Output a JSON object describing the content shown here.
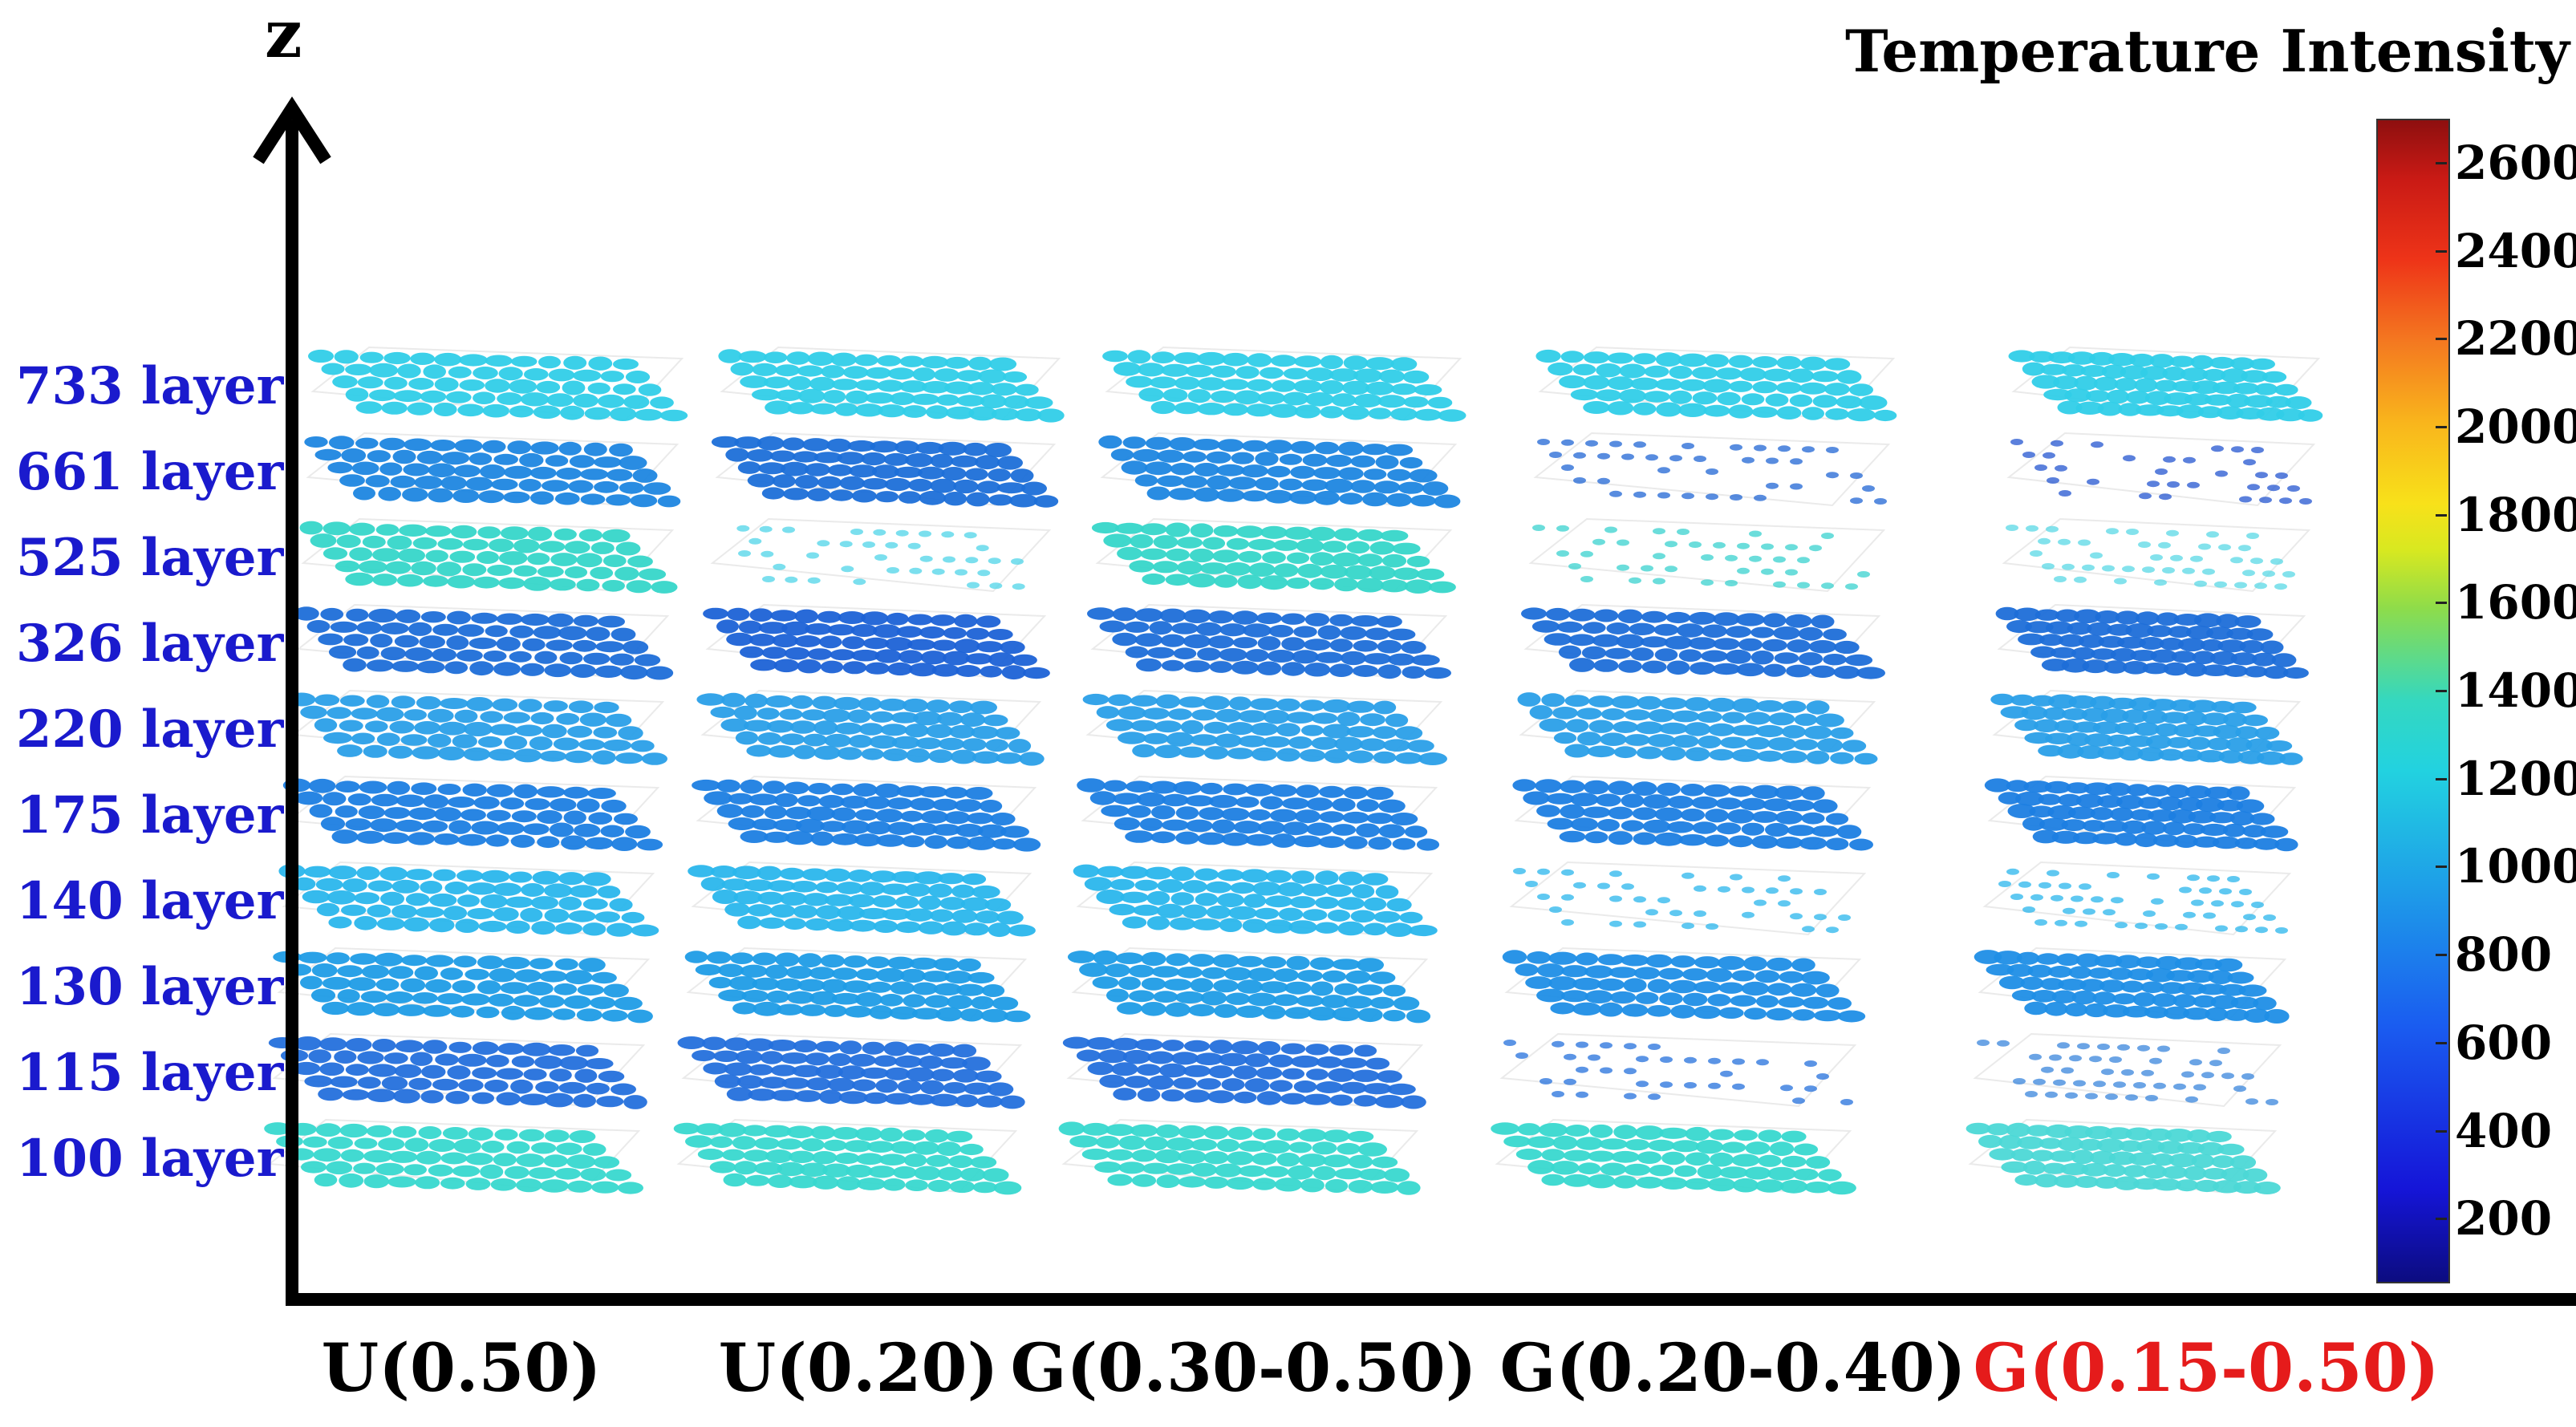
{
  "axis": {
    "z_label": "z"
  },
  "layers": [
    "733 layer",
    "661 layer",
    "525 layer",
    "326 layer",
    "220 layer",
    "175 layer",
    "140 layer",
    "130 layer",
    "115 layer",
    "100 layer"
  ],
  "columns": [
    {
      "label": "U(0.50)",
      "highlight": false
    },
    {
      "label": "U(0.20)",
      "highlight": false
    },
    {
      "label": "G(0.30-0.50)",
      "highlight": false
    },
    {
      "label": "G(0.20-0.40)",
      "highlight": false
    },
    {
      "label": "G(0.15-0.50)",
      "highlight": true
    }
  ],
  "colorbar": {
    "title": "Temperature Intensity",
    "ticks": [
      "2600",
      "2400",
      "2200",
      "2000",
      "1800",
      "1600",
      "1400",
      "1200",
      "1000",
      "800",
      "600",
      "400",
      "200"
    ],
    "tick_values": [
      2600,
      2400,
      2200,
      2000,
      1800,
      1600,
      1400,
      1200,
      1000,
      800,
      600,
      400,
      200
    ],
    "range": [
      60,
      2700
    ]
  },
  "colors": {
    "layer_label": "#1a1acd",
    "highlight_label": "#e51b1b",
    "cell_cyan": "#2fd2e6",
    "cell_blue": "#1d8fe6",
    "cell_deep_blue": "#1a5fd4",
    "cell_teal": "#3fdcd0"
  },
  "cell_palettes": [
    [
      "#30cde8",
      "#1e86e0",
      "#36d6c9",
      "#1e6ed8",
      "#2a9fe8",
      "#1c7ee2",
      "#2ab6ec",
      "#1f9ce6",
      "#2470dc",
      "#38d8cf"
    ],
    [
      "#30cde8",
      "#1c6fd8",
      "#4fd4e8",
      "#1c62d6",
      "#2a9fe8",
      "#1c7ee2",
      "#2ab6ec",
      "#1f9ce6",
      "#2470dc",
      "#38d8cf"
    ],
    [
      "#30cde8",
      "#1e86e0",
      "#36d6c9",
      "#1e6ed8",
      "#2a9fe8",
      "#1c7ee2",
      "#2ab6ec",
      "#1f9ce6",
      "#2470dc",
      "#38d8cf"
    ],
    [
      "#30cde8",
      "#2066d4",
      "#3ad2cf",
      "#1e6ed8",
      "#2a9fe8",
      "#1c7ee2",
      "#2ab6ec",
      "#1f8ee6",
      "#2470dc",
      "#38d8cf"
    ],
    [
      "#30cde8",
      "#2456d0",
      "#5ad8e6",
      "#1e6ed8",
      "#2a9fe8",
      "#1c7ee2",
      "#2ab6ec",
      "#1f8ee6",
      "#3a86dc",
      "#4cd8d6"
    ]
  ]
}
